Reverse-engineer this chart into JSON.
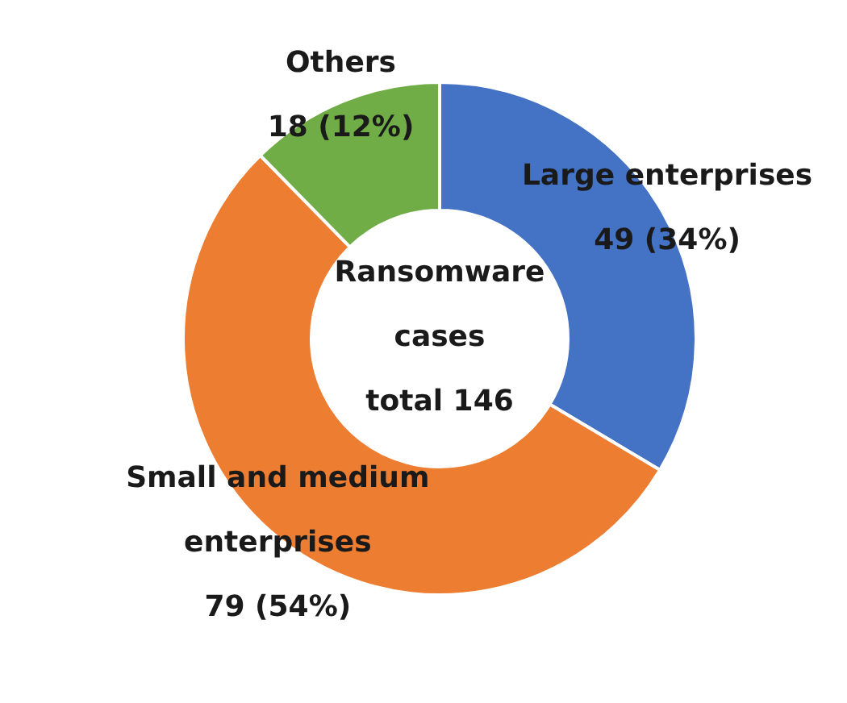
{
  "chart_data": {
    "type": "donut",
    "categories": [
      "Large enterprises",
      "Small and medium enterprises",
      "Others"
    ],
    "values": [
      49,
      79,
      18
    ],
    "colors": [
      "#4472c4",
      "#ed7d31",
      "#70ad47"
    ],
    "value_labels": [
      "49 (34%)",
      "79 (54%)",
      "18 (12%)"
    ],
    "annotations": [
      "Ransomware",
      "cases",
      "total 146"
    ],
    "legend": false
  }
}
